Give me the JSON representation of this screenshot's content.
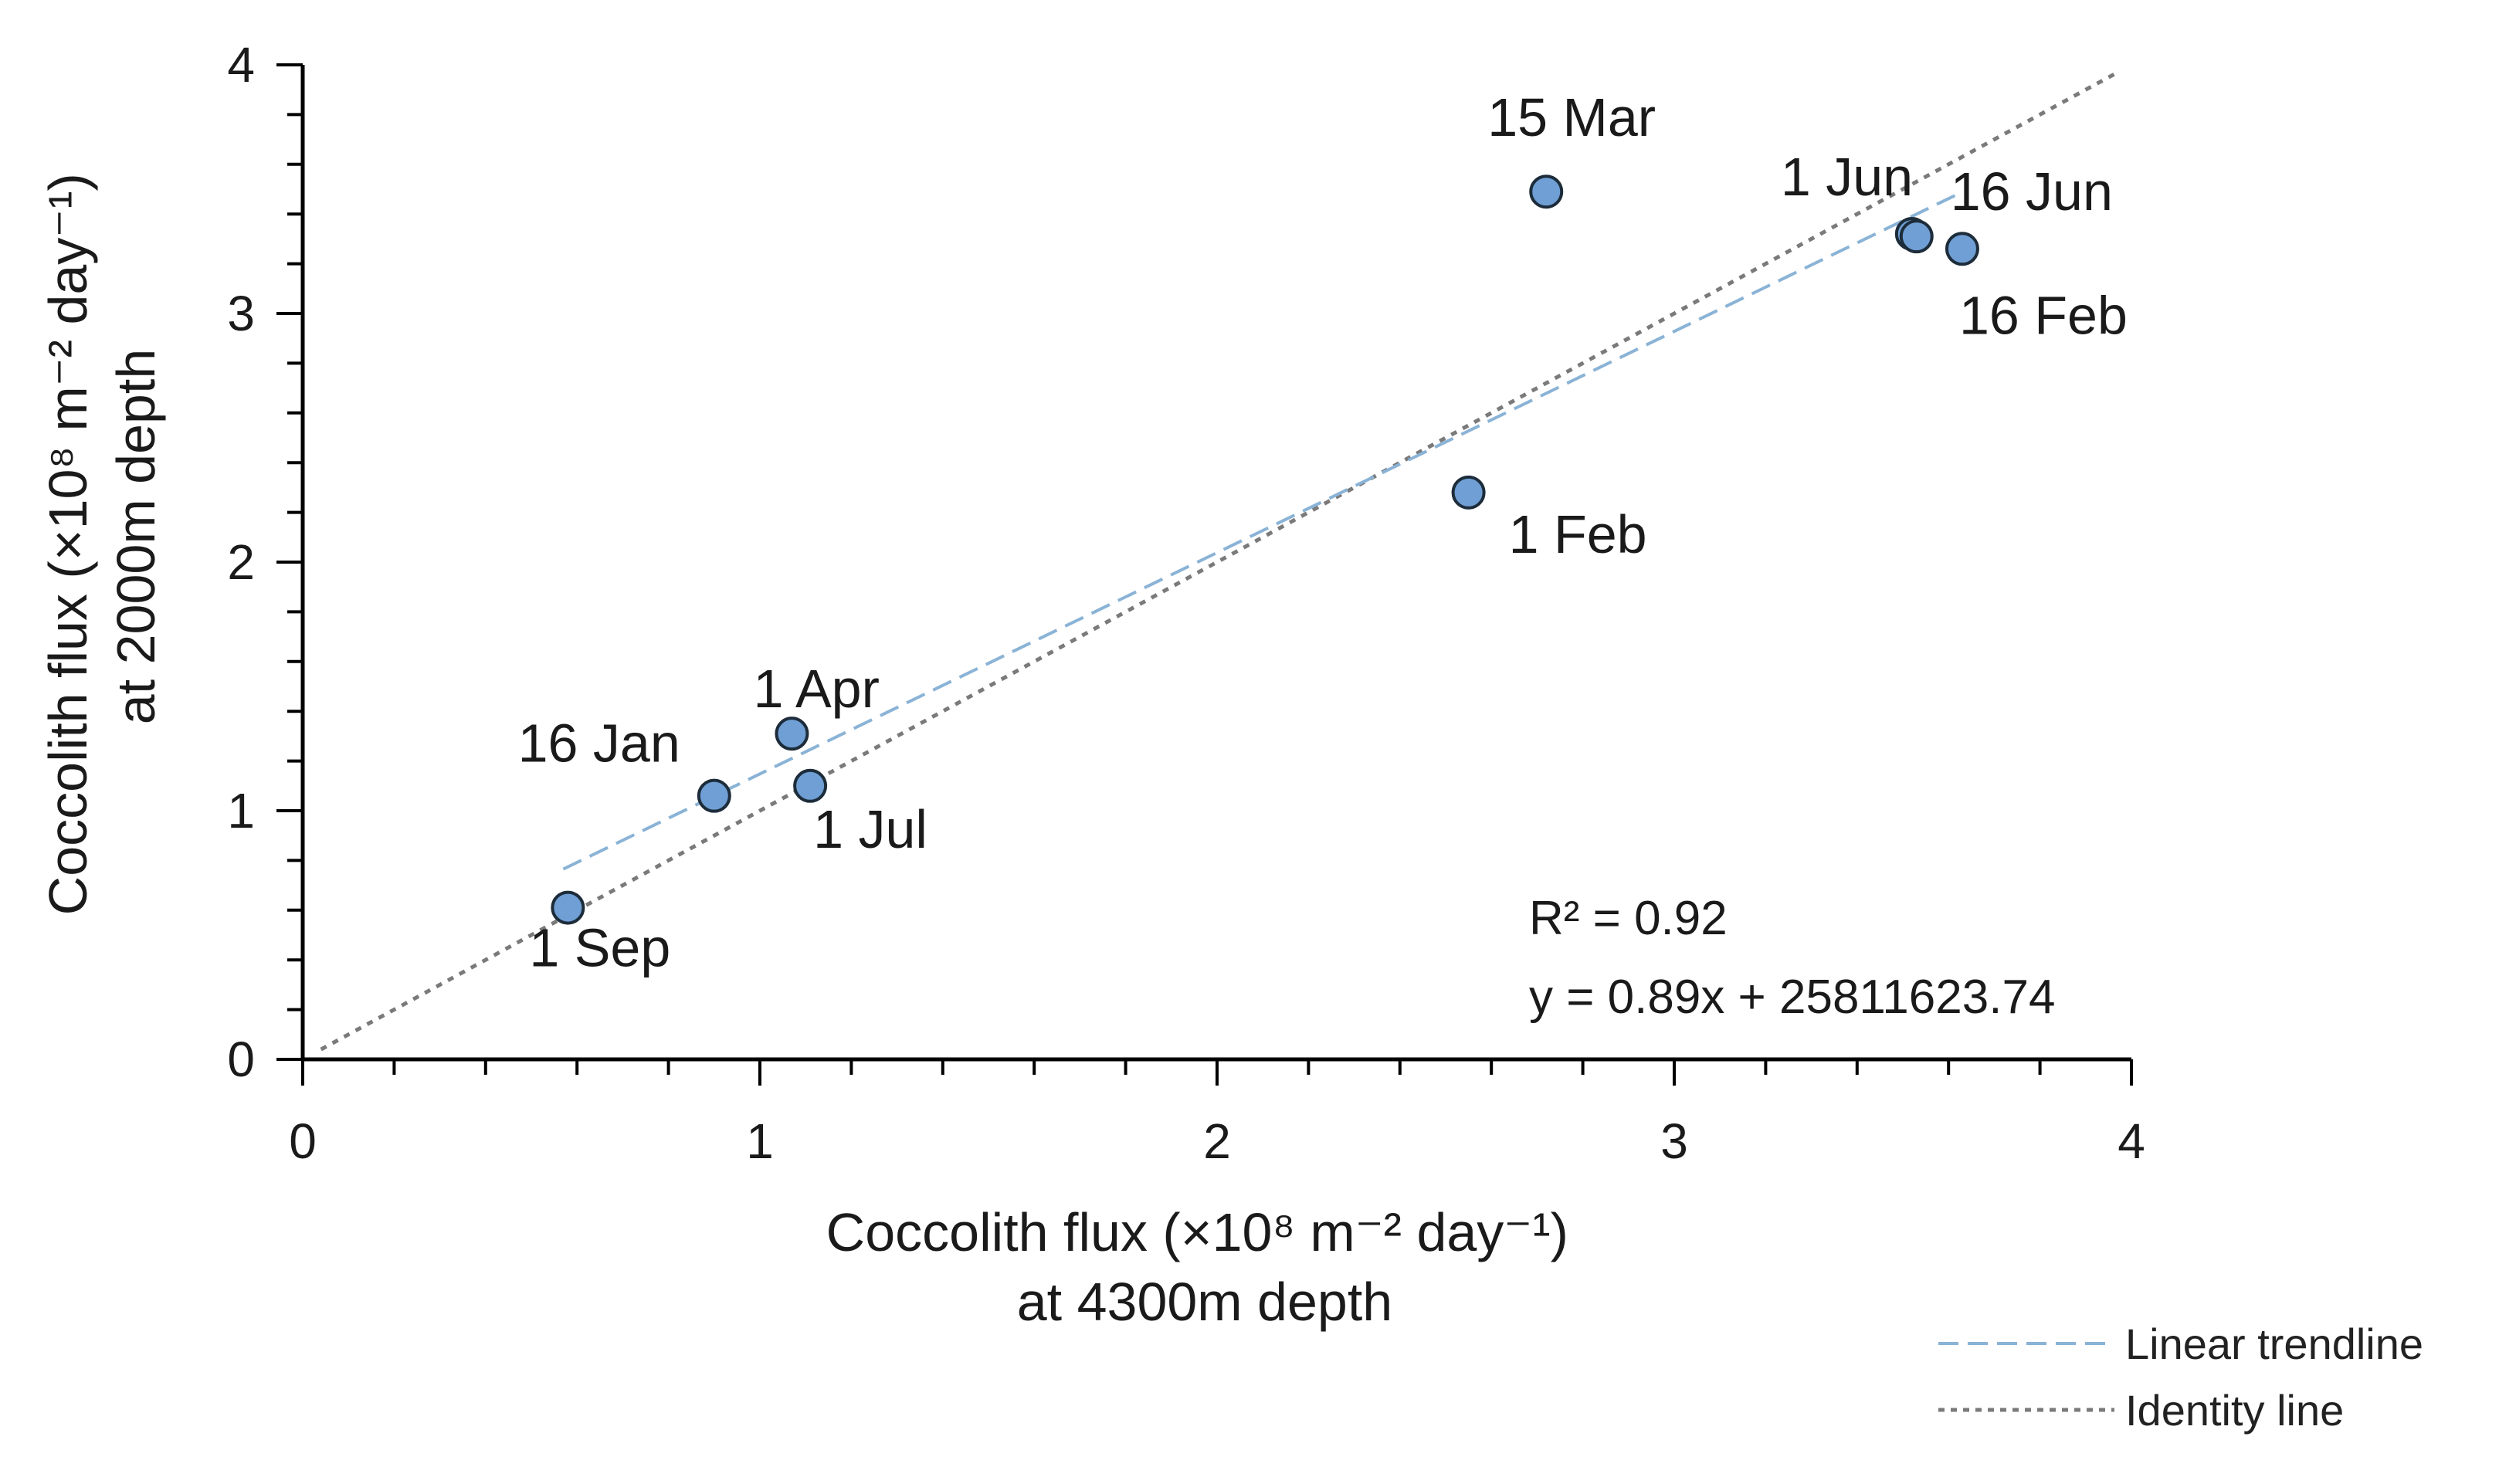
{
  "chart_data": {
    "type": "scatter",
    "xlabel": [
      "Coccolith flux (×10⁸ m⁻² day⁻¹)",
      "at 4300m depth"
    ],
    "ylabel": [
      "Coccolith flux (×10⁸ m⁻² day⁻¹)",
      "at 2000m depth"
    ],
    "xlim": [
      0,
      4
    ],
    "ylim": [
      0,
      4
    ],
    "xticks": [
      "0",
      "1",
      "2",
      "3",
      "4"
    ],
    "yticks": [
      "0",
      "1",
      "2",
      "3",
      "4"
    ],
    "points": [
      {
        "label": "1 Sep",
        "x": 0.58,
        "y": 0.61
      },
      {
        "label": "16 Jan",
        "x": 0.9,
        "y": 1.06
      },
      {
        "label": "1 Apr",
        "x": 1.07,
        "y": 1.31
      },
      {
        "label": "1 Jul",
        "x": 1.11,
        "y": 1.1
      },
      {
        "label": "1 Feb",
        "x": 2.55,
        "y": 2.28
      },
      {
        "label": "15 Mar",
        "x": 2.72,
        "y": 3.49
      },
      {
        "label": "1 Jun",
        "x": 3.52,
        "y": 3.32
      },
      {
        "label": "16 Jun",
        "x": 3.53,
        "y": 3.31
      },
      {
        "label": "16 Feb",
        "x": 3.63,
        "y": 3.26
      }
    ],
    "trendline": {
      "name": "Linear trendline",
      "x_range": [
        0.57,
        3.63
      ],
      "slope": 0.89,
      "intercept": 0.258
    },
    "identity": {
      "name": "Identity line",
      "x_range": [
        0.04,
        3.97
      ]
    },
    "annotations": [
      "R² = 0.92",
      "y = 0.89x + 25811623.74"
    ],
    "legend_position": "bottom-right",
    "grid": false,
    "colors": {
      "point_fill": "#6f9fd4",
      "point_stroke": "#1d2c3a",
      "trendline": "#8ab3d6",
      "identity": "#7a7a7a",
      "axis": "#000000"
    }
  }
}
